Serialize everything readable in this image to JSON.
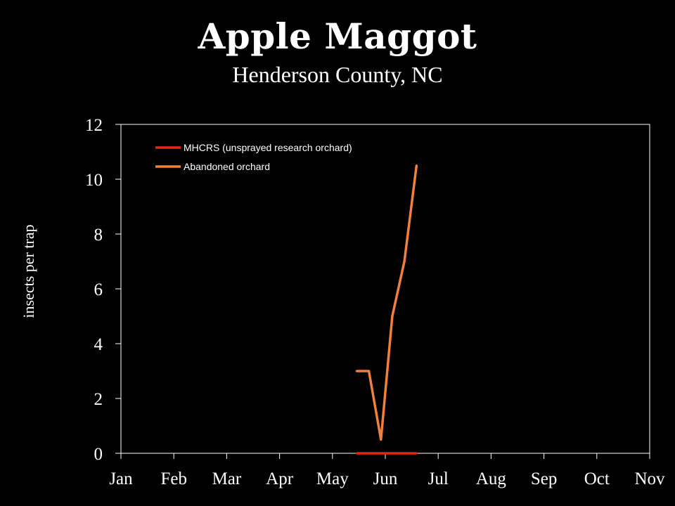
{
  "chart_data": {
    "type": "line",
    "title": "Apple Maggot",
    "subtitle": "Henderson County, NC",
    "xlabel": "",
    "ylabel": "insects per trap",
    "categories": [
      "Jan",
      "Feb",
      "Mar",
      "Apr",
      "May",
      "Jun",
      "Jul",
      "Aug",
      "Sep",
      "Oct",
      "Nov"
    ],
    "xlim": [
      "Jan",
      "Nov"
    ],
    "ylim": [
      0,
      12
    ],
    "yticks": [
      0,
      2,
      4,
      6,
      8,
      10,
      12
    ],
    "grid": false,
    "legend_position": "top-left",
    "series": [
      {
        "name": "MHCRS (unsprayed research orchard)",
        "color": "#e8231c",
        "x": [
          "May 15",
          "May 22",
          "May 29",
          "Jun 5",
          "Jun 12",
          "Jun 19"
        ],
        "values": [
          0,
          0,
          0,
          0,
          0,
          0
        ]
      },
      {
        "name": "Abandoned orchard",
        "color": "#f0803c",
        "x": [
          "May 15",
          "May 22",
          "May 29",
          "Jun 5",
          "Jun 12",
          "Jun 19"
        ],
        "values": [
          3,
          3,
          0.5,
          5,
          7,
          10.5
        ]
      }
    ]
  },
  "colors": {
    "background": "#000000",
    "axis": "#ffffff",
    "text": "#ffffff"
  }
}
